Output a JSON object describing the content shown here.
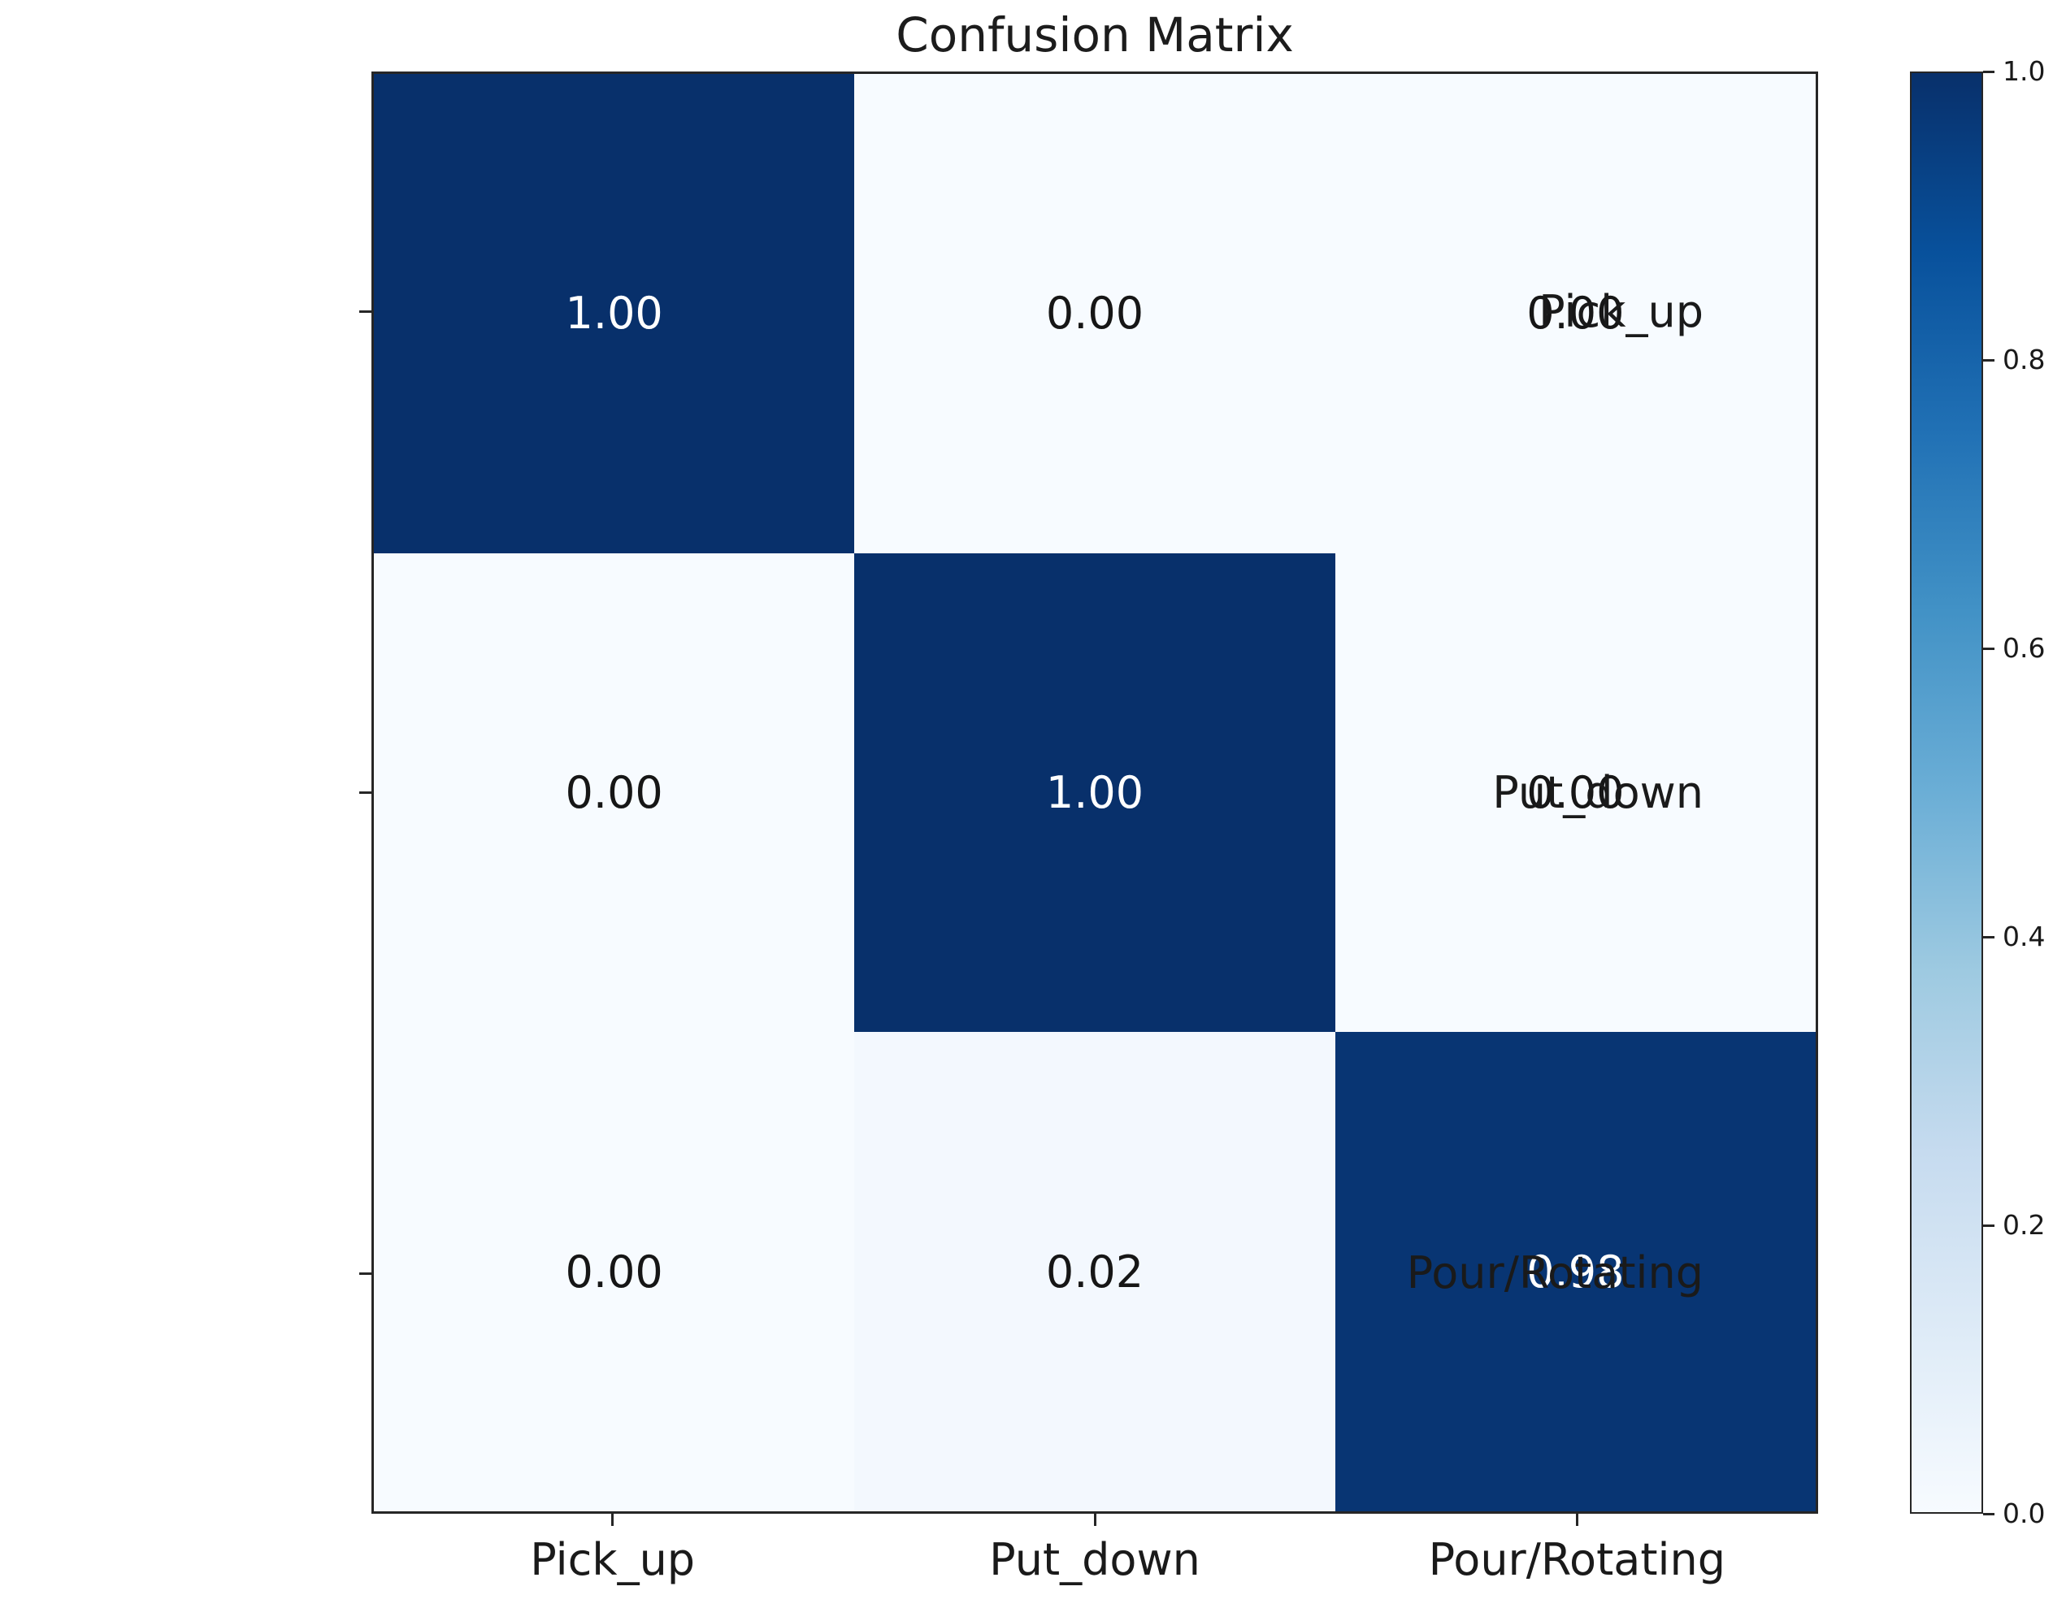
{
  "title": "Confusion Matrix",
  "chart_data": {
    "type": "heatmap",
    "title": "Confusion Matrix",
    "row_labels": [
      "Pick_up",
      "Put_down",
      "Pour/Rotating"
    ],
    "col_labels": [
      "Pick_up",
      "Put_down",
      "Pour/Rotating"
    ],
    "matrix": [
      [
        1.0,
        0.0,
        0.0
      ],
      [
        0.0,
        1.0,
        0.0
      ],
      [
        0.0,
        0.02,
        0.98
      ]
    ],
    "cell_text": [
      [
        "1.00",
        "0.00",
        "0.00"
      ],
      [
        "0.00",
        "1.00",
        "0.00"
      ],
      [
        "0.00",
        "0.02",
        "0.98"
      ]
    ],
    "vmin": 0.0,
    "vmax": 1.0,
    "colormap": "Blues",
    "colorbar_ticks": [
      "1.0",
      "0.8",
      "0.6",
      "0.4",
      "0.2",
      "0.0"
    ],
    "colorbar_tick_values": [
      1.0,
      0.8,
      0.6,
      0.4,
      0.2,
      0.0
    ],
    "legend_position": "right",
    "grid": false,
    "colors": {
      "blues_stops": [
        "#f7fbff",
        "#deebf7",
        "#c6dbef",
        "#9ecae1",
        "#6baed6",
        "#4292c6",
        "#2171b5",
        "#08519c",
        "#08306b"
      ],
      "dark_cell": "#11386e",
      "light_cell": "#f7fbff",
      "text_on_dark": "#ffffff",
      "text_on_light": "#161616",
      "spine": "#262626",
      "background": "#ffffff"
    }
  }
}
